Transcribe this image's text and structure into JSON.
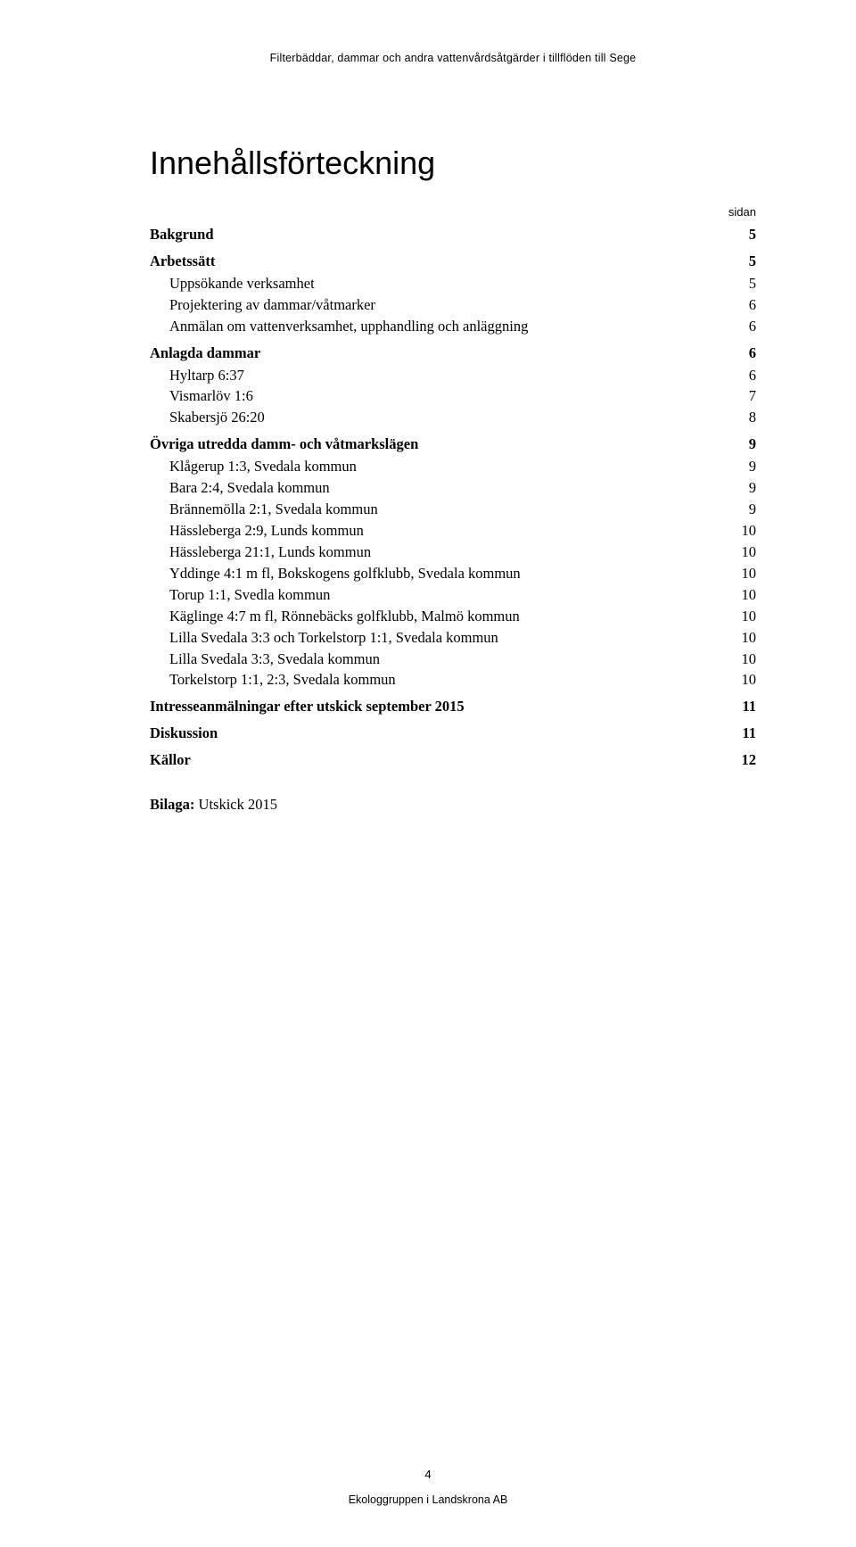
{
  "header": {
    "running": "Filterbäddar, dammar och andra vattenvårdsåtgärder i tillflöden till Sege"
  },
  "title": "Innehållsförteckning",
  "sidan_label": "sidan",
  "toc": [
    {
      "level": 0,
      "label": "Bakgrund",
      "page": "5"
    },
    {
      "level": 0,
      "label": "Arbetssätt",
      "page": "5"
    },
    {
      "level": 1,
      "label": "Uppsökande verksamhet",
      "page": "5"
    },
    {
      "level": 1,
      "label": "Projektering av dammar/våtmarker",
      "page": "6"
    },
    {
      "level": 1,
      "label": "Anmälan om vattenverksamhet, upphandling och anläggning",
      "page": "6"
    },
    {
      "level": 0,
      "label": "Anlagda dammar",
      "page": "6"
    },
    {
      "level": 1,
      "label": "Hyltarp 6:37",
      "page": "6"
    },
    {
      "level": 1,
      "label": "Vismarlöv 1:6",
      "page": "7"
    },
    {
      "level": 1,
      "label": "Skabersjö 26:20",
      "page": "8"
    },
    {
      "level": 0,
      "label": "Övriga utredda damm- och våtmarkslägen",
      "page": "9"
    },
    {
      "level": 1,
      "label": "Klågerup 1:3, Svedala kommun",
      "page": "9"
    },
    {
      "level": 1,
      "label": "Bara 2:4, Svedala kommun",
      "page": "9"
    },
    {
      "level": 1,
      "label": "Brännemölla 2:1, Svedala kommun",
      "page": "9"
    },
    {
      "level": 1,
      "label": "Hässleberga 2:9, Lunds kommun",
      "page": "10"
    },
    {
      "level": 1,
      "label": "Hässleberga 21:1, Lunds kommun",
      "page": "10"
    },
    {
      "level": 1,
      "label": "Yddinge 4:1 m fl, Bokskogens golfklubb, Svedala kommun",
      "page": "10"
    },
    {
      "level": 1,
      "label": "Torup 1:1, Svedla kommun",
      "page": "10"
    },
    {
      "level": 1,
      "label": "Käglinge 4:7 m fl, Rönnebäcks golfklubb, Malmö kommun",
      "page": "10"
    },
    {
      "level": 1,
      "label": "Lilla Svedala 3:3 och Torkelstorp 1:1, Svedala kommun",
      "page": "10"
    },
    {
      "level": 1,
      "label": "Lilla Svedala 3:3, Svedala kommun",
      "page": "10"
    },
    {
      "level": 1,
      "label": "Torkelstorp 1:1, 2:3, Svedala kommun",
      "page": "10"
    },
    {
      "level": 0,
      "label": "Intresseanmälningar efter utskick september 2015",
      "page": "11"
    },
    {
      "level": 0,
      "label": "Diskussion",
      "page": "11"
    },
    {
      "level": 0,
      "label": "Källor",
      "page": "12"
    }
  ],
  "attachment": {
    "label": "Bilaga:",
    "value": "Utskick 2015"
  },
  "footer": {
    "page_number": "4",
    "org": "Ekologgruppen i Landskrona AB"
  }
}
